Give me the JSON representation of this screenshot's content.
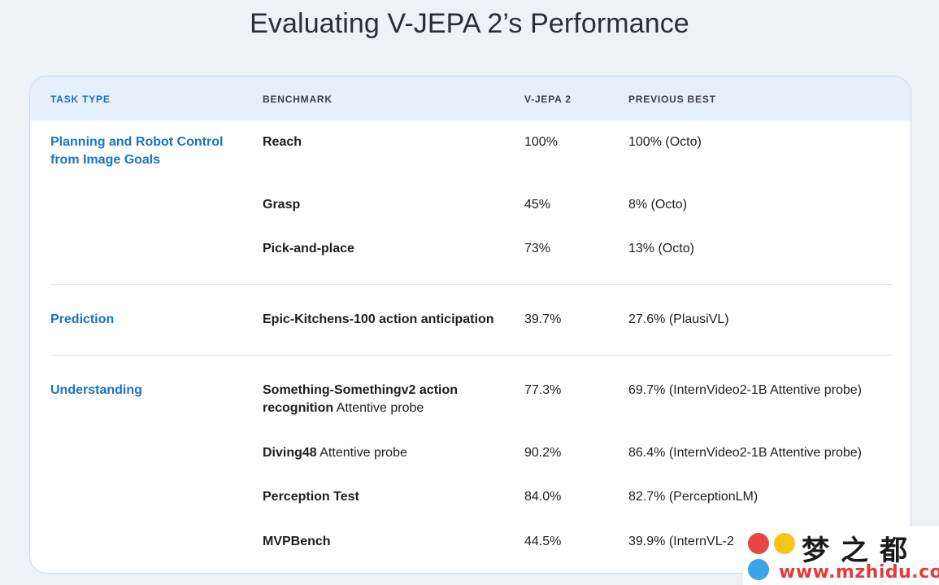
{
  "page": {
    "title": "Evaluating V-JEPA 2’s Performance"
  },
  "table": {
    "headers": {
      "task_type": "TASK TYPE",
      "benchmark": "BENCHMARK",
      "vjepa2": "V-JEPA 2",
      "previous_best": "PREVIOUS BEST"
    },
    "groups": [
      {
        "task": "Planning and Robot Control from Image Goals",
        "rows": [
          {
            "benchmark": "Reach",
            "suffix": "",
            "vjepa2": "100%",
            "previous_best": "100% (Octo)"
          },
          {
            "benchmark": "Grasp",
            "suffix": "",
            "vjepa2": "45%",
            "previous_best": "8% (Octo)"
          },
          {
            "benchmark": "Pick-and-place",
            "suffix": "",
            "vjepa2": "73%",
            "previous_best": "13% (Octo)"
          }
        ]
      },
      {
        "task": "Prediction",
        "rows": [
          {
            "benchmark": "Epic-Kitchens-100 action anticipation",
            "suffix": "",
            "vjepa2": "39.7%",
            "previous_best": "27.6% (PlausiVL)"
          }
        ]
      },
      {
        "task": "Understanding",
        "rows": [
          {
            "benchmark": "Something-Somethingv2 action recognition",
            "suffix": " Attentive probe",
            "vjepa2": "77.3%",
            "previous_best": "69.7% (InternVideo2-1B Attentive probe)"
          },
          {
            "benchmark": "Diving48",
            "suffix": " Attentive probe",
            "vjepa2": "90.2%",
            "previous_best": "86.4% (InternVideo2-1B Attentive probe)"
          },
          {
            "benchmark": "Perception Test",
            "suffix": "",
            "vjepa2": "84.0%",
            "previous_best": "82.7% (PerceptionLM)"
          },
          {
            "benchmark": "MVPBench",
            "suffix": "",
            "vjepa2": "44.5%",
            "previous_best": "39.9% (InternVL-2"
          }
        ]
      }
    ]
  },
  "watermark": {
    "chinese": "梦之都",
    "url": "www.mzhidu.com"
  },
  "colors": {
    "background": "#eef2f5",
    "header_bg": "#e6f0fb",
    "accent_blue": "#1a73c9",
    "card_border": "#c9d9ea"
  }
}
